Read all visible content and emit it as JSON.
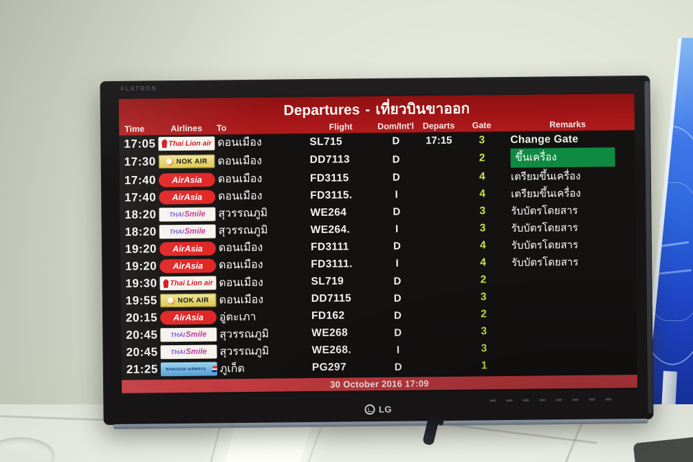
{
  "monitor": {
    "brand_top": "FLATRON",
    "brand_bottom": "LG"
  },
  "board": {
    "title_en": "Departures",
    "title_sep": "-",
    "title_th": "เที่ยวบินขาออก",
    "columns": [
      "Time",
      "Airlines",
      "To",
      "Flight",
      "Dom/Int'l",
      "Departs",
      "Gate",
      "Remarks"
    ],
    "footer_datetime": "30 October 2016 17:09",
    "rows": [
      {
        "time": "17:05",
        "airline": "thai_lion",
        "to": "ดอนเมือง",
        "flight": "SL715",
        "dom_intl": "D",
        "departs": "17:15",
        "gate": "3",
        "remark": "Change Gate",
        "remark_style": "strong"
      },
      {
        "time": "17:30",
        "airline": "nok",
        "to": "ดอนเมือง",
        "flight": "DD7113",
        "dom_intl": "D",
        "departs": "",
        "gate": "2",
        "remark": "ขึ้นเครื่อง",
        "remark_style": "green"
      },
      {
        "time": "17:40",
        "airline": "airasia",
        "to": "ดอนเมือง",
        "flight": "FD3115",
        "dom_intl": "D",
        "departs": "",
        "gate": "4",
        "remark": "เตรียมขึ้นเครื่อง",
        "remark_style": "normal"
      },
      {
        "time": "17:40",
        "airline": "airasia",
        "to": "ดอนเมือง",
        "flight": "FD3115.",
        "dom_intl": "I",
        "departs": "",
        "gate": "4",
        "remark": "เตรียมขึ้นเครื่อง",
        "remark_style": "normal"
      },
      {
        "time": "18:20",
        "airline": "thai_smile",
        "to": "สุวรรณภูมิ",
        "flight": "WE264",
        "dom_intl": "D",
        "departs": "",
        "gate": "3",
        "remark": "รับบัตรโดยสาร",
        "remark_style": "normal"
      },
      {
        "time": "18:20",
        "airline": "thai_smile",
        "to": "สุวรรณภูมิ",
        "flight": "WE264.",
        "dom_intl": "I",
        "departs": "",
        "gate": "3",
        "remark": "รับบัตรโดยสาร",
        "remark_style": "normal"
      },
      {
        "time": "19:20",
        "airline": "airasia",
        "to": "ดอนเมือง",
        "flight": "FD3111",
        "dom_intl": "D",
        "departs": "",
        "gate": "4",
        "remark": "รับบัตรโดยสาร",
        "remark_style": "normal"
      },
      {
        "time": "19:20",
        "airline": "airasia",
        "to": "ดอนเมือง",
        "flight": "FD3111.",
        "dom_intl": "I",
        "departs": "",
        "gate": "4",
        "remark": "รับบัตรโดยสาร",
        "remark_style": "normal"
      },
      {
        "time": "19:30",
        "airline": "thai_lion",
        "to": "ดอนเมือง",
        "flight": "SL719",
        "dom_intl": "D",
        "departs": "",
        "gate": "2",
        "remark": "",
        "remark_style": "none"
      },
      {
        "time": "19:55",
        "airline": "nok",
        "to": "ดอนเมือง",
        "flight": "DD7115",
        "dom_intl": "D",
        "departs": "",
        "gate": "3",
        "remark": "",
        "remark_style": "none"
      },
      {
        "time": "20:15",
        "airline": "airasia",
        "to": "อู่ตะเภา",
        "flight": "FD162",
        "dom_intl": "D",
        "departs": "",
        "gate": "2",
        "remark": "",
        "remark_style": "none"
      },
      {
        "time": "20:45",
        "airline": "thai_smile",
        "to": "สุวรรณภูมิ",
        "flight": "WE268",
        "dom_intl": "D",
        "departs": "",
        "gate": "3",
        "remark": "",
        "remark_style": "none"
      },
      {
        "time": "20:45",
        "airline": "thai_smile",
        "to": "สุวรรณภูมิ",
        "flight": "WE268.",
        "dom_intl": "I",
        "departs": "",
        "gate": "3",
        "remark": "",
        "remark_style": "none"
      },
      {
        "time": "21:25",
        "airline": "bangkok",
        "to": "ภูเก็ต",
        "flight": "PG297",
        "dom_intl": "D",
        "departs": "",
        "gate": "1",
        "remark": "",
        "remark_style": "none"
      }
    ]
  },
  "airlines": {
    "thai_lion": {
      "name": "Thai Lion Air",
      "text": "Thai Lion air"
    },
    "nok": {
      "name": "Nok Air",
      "text": "NOK AIR"
    },
    "airasia": {
      "name": "AirAsia",
      "text": "AirAsia"
    },
    "thai_smile": {
      "name": "THAI Smile",
      "text_part1": "THAI",
      "text_part2": "Smile"
    },
    "bangkok": {
      "name": "Bangkok Airways",
      "text": "BANGKOK AIRWAYS"
    }
  },
  "colors": {
    "header_red": "#a31517",
    "footer_red": "#c23b40",
    "screen_bg": "#141111",
    "gate_yellow": "#cde24e",
    "remark_green": "#0f8a42",
    "airasia_red": "#e02423",
    "nok_yellow": "#dcc84a",
    "bangkok_blue": "#9bd4ee",
    "lion_red": "#d31420",
    "smile_purple": "#7b5bd6",
    "smile_magenta": "#c03a9a",
    "sign_blue": "#2e6ae0"
  }
}
